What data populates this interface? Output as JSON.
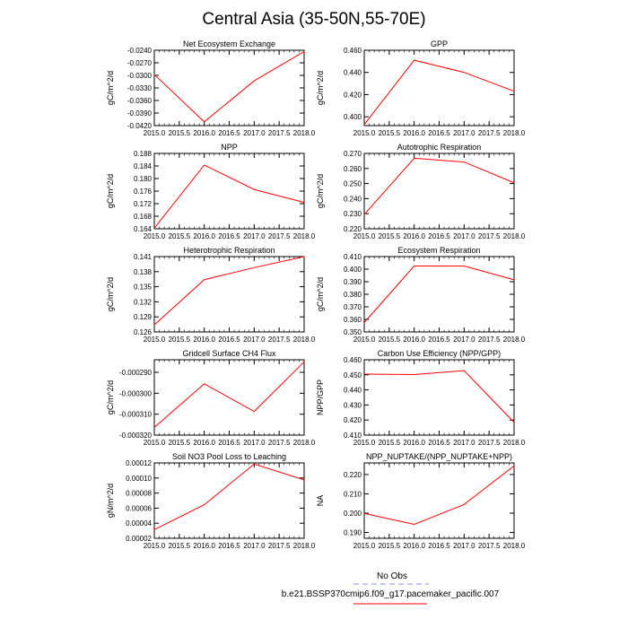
{
  "figure_title": "Central Asia (35-50N,55-70E)",
  "legend": {
    "entries": [
      {
        "label": "No Obs",
        "color": "#8c8cff",
        "style": "dashed"
      },
      {
        "label": "b.e21.BSSP370cmip6.f09_g17.pacemaker_pacific.007",
        "color": "#ff0000",
        "style": "solid"
      }
    ]
  },
  "chart_data": [
    {
      "type": "line",
      "title": "Net Ecosystem Exchange",
      "ylabel": "gC/m^2/d",
      "x": [
        2015,
        2016,
        2017,
        2018
      ],
      "xlim": [
        2015,
        2018
      ],
      "xticks": [
        "2015.0",
        "2015.5",
        "2016.0",
        "2016.5",
        "2017.0",
        "2017.5",
        "2018.0"
      ],
      "ylim": [
        -0.042,
        -0.024
      ],
      "yticks": [
        "-0.0240",
        "-0.0270",
        "-0.0300",
        "-0.0330",
        "-0.0360",
        "-0.0390",
        "-0.0420"
      ],
      "series": [
        {
          "values": [
            -0.0298,
            -0.0411,
            -0.0313,
            -0.0243
          ],
          "color": "#ff0000"
        }
      ]
    },
    {
      "type": "line",
      "title": "GPP",
      "ylabel": "gC/m^2/d",
      "x": [
        2015,
        2016,
        2017,
        2018
      ],
      "xlim": [
        2015,
        2018
      ],
      "xticks": [
        "2015.0",
        "2015.5",
        "2016.0",
        "2016.5",
        "2017.0",
        "2017.5",
        "2018.0"
      ],
      "ylim": [
        0.392,
        0.46
      ],
      "yticks": [
        "0.400",
        "0.420",
        "0.440",
        "0.460"
      ],
      "series": [
        {
          "values": [
            0.393,
            0.451,
            0.44,
            0.423
          ],
          "color": "#ff0000"
        }
      ]
    },
    {
      "type": "line",
      "title": "NPP",
      "ylabel": "gC/m^2/d",
      "x": [
        2015,
        2016,
        2017,
        2018
      ],
      "xlim": [
        2015,
        2018
      ],
      "xticks": [
        "2015.0",
        "2015.5",
        "2016.0",
        "2016.5",
        "2017.0",
        "2017.5",
        "2018.0"
      ],
      "ylim": [
        0.164,
        0.188
      ],
      "yticks": [
        "0.188",
        "0.184",
        "0.180",
        "0.176",
        "0.172",
        "0.168",
        "0.164"
      ],
      "series": [
        {
          "values": [
            0.1642,
            0.1843,
            0.1765,
            0.1724
          ],
          "color": "#ff0000"
        }
      ]
    },
    {
      "type": "line",
      "title": "Autotrophic Respiration",
      "ylabel": "gC/m^2/d",
      "x": [
        2015,
        2016,
        2017,
        2018
      ],
      "xlim": [
        2015,
        2018
      ],
      "xticks": [
        "2015.0",
        "2015.5",
        "2016.0",
        "2016.5",
        "2017.0",
        "2017.5",
        "2018.0"
      ],
      "ylim": [
        0.22,
        0.27
      ],
      "yticks": [
        "0.270",
        "0.260",
        "0.250",
        "0.240",
        "0.230",
        "0.220"
      ],
      "series": [
        {
          "values": [
            0.2295,
            0.2668,
            0.2643,
            0.2505
          ],
          "color": "#ff0000"
        }
      ]
    },
    {
      "type": "line",
      "title": "Heterotrophic Respiration",
      "ylabel": "gC/m^2/d",
      "x": [
        2015,
        2016,
        2017,
        2018
      ],
      "xlim": [
        2015,
        2018
      ],
      "xticks": [
        "2015.0",
        "2015.5",
        "2016.0",
        "2016.5",
        "2017.0",
        "2017.5",
        "2018.0"
      ],
      "ylim": [
        0.126,
        0.141
      ],
      "yticks": [
        "0.141",
        "0.138",
        "0.135",
        "0.132",
        "0.129",
        "0.126"
      ],
      "series": [
        {
          "values": [
            0.1274,
            0.1364,
            0.1388,
            0.141
          ],
          "color": "#ff0000"
        }
      ]
    },
    {
      "type": "line",
      "title": "Ecosystem Respiration",
      "ylabel": "gC/m^2/d",
      "x": [
        2015,
        2016,
        2017,
        2018
      ],
      "xlim": [
        2015,
        2018
      ],
      "xticks": [
        "2015.0",
        "2015.5",
        "2016.0",
        "2016.5",
        "2017.0",
        "2017.5",
        "2018.0"
      ],
      "ylim": [
        0.35,
        0.41
      ],
      "yticks": [
        "0.410",
        "0.400",
        "0.390",
        "0.380",
        "0.370",
        "0.360",
        "0.350"
      ],
      "series": [
        {
          "values": [
            0.3575,
            0.4025,
            0.4025,
            0.3915
          ],
          "color": "#ff0000"
        }
      ]
    },
    {
      "type": "line",
      "title": "Gridcell Surface CH4 Flux",
      "ylabel": "gC/m^2/d",
      "x": [
        2015,
        2016,
        2017,
        2018
      ],
      "xlim": [
        2015,
        2018
      ],
      "xticks": [
        "2015.0",
        "2015.5",
        "2016.0",
        "2016.5",
        "2017.0",
        "2017.5",
        "2018.0"
      ],
      "ylim": [
        -0.00032,
        -0.000284
      ],
      "yticks": [
        "-0.000290",
        "-0.000300",
        "-0.000310",
        "-0.000320"
      ],
      "series": [
        {
          "values": [
            -0.0003163,
            -0.0002955,
            -0.0003087,
            -0.000285
          ],
          "color": "#ff0000"
        }
      ]
    },
    {
      "type": "line",
      "title": "Carbon Use Efficiency (NPP/GPP)",
      "ylabel": "NPP/GPP",
      "x": [
        2015,
        2016,
        2017,
        2018
      ],
      "xlim": [
        2015,
        2018
      ],
      "xticks": [
        "2015.0",
        "2015.5",
        "2016.0",
        "2016.5",
        "2017.0",
        "2017.5",
        "2018.0"
      ],
      "ylim": [
        0.41,
        0.46
      ],
      "yticks": [
        "0.460",
        "0.450",
        "0.440",
        "0.430",
        "0.420",
        "0.410"
      ],
      "series": [
        {
          "values": [
            0.4505,
            0.4502,
            0.4528,
            0.4185
          ],
          "color": "#ff0000"
        }
      ]
    },
    {
      "type": "line",
      "title": "Soil NO3 Pool Loss to Leaching",
      "ylabel": "gN/m^2/d",
      "x": [
        2015,
        2016,
        2017,
        2018
      ],
      "xlim": [
        2015,
        2018
      ],
      "xticks": [
        "2015.0",
        "2015.5",
        "2016.0",
        "2016.5",
        "2017.0",
        "2017.5",
        "2018.0"
      ],
      "ylim": [
        2e-05,
        0.00012
      ],
      "yticks": [
        "0.00012",
        "0.00010",
        "0.00008",
        "0.00006",
        "0.00004",
        "0.00002"
      ],
      "series": [
        {
          "values": [
            3.15e-05,
            6.45e-05,
            0.0001185,
            9.75e-05
          ],
          "color": "#ff0000"
        }
      ]
    },
    {
      "type": "line",
      "title": "NPP_NUPTAKE/(NPP_NUPTAKE+NPP)",
      "ylabel": "NA",
      "x": [
        2015,
        2016,
        2017,
        2018
      ],
      "xlim": [
        2015,
        2018
      ],
      "xticks": [
        "2015.0",
        "2015.5",
        "2016.0",
        "2016.5",
        "2017.0",
        "2017.5",
        "2018.0"
      ],
      "ylim": [
        0.187,
        0.226
      ],
      "yticks": [
        "0.220",
        "0.210",
        "0.200",
        "0.190"
      ],
      "series": [
        {
          "values": [
            0.1999,
            0.1942,
            0.2045,
            0.2245
          ],
          "color": "#ff0000"
        }
      ]
    }
  ]
}
